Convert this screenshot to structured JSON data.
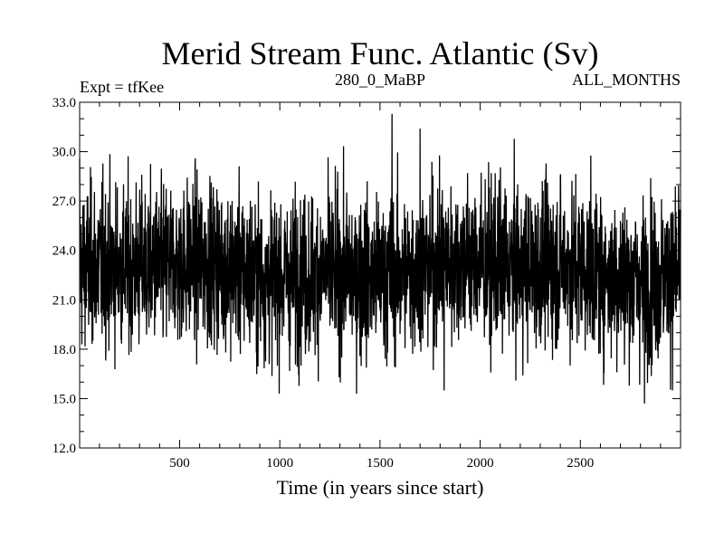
{
  "chart_data": {
    "type": "line",
    "title": "Merid Stream Func. Atlantic (Sv)",
    "subtitle_left": "Expt = tfKee",
    "subtitle_center": "280_0_MaBP",
    "subtitle_right": "ALL_MONTHS",
    "xlabel": "Time (in years since start)",
    "ylabel": "",
    "xlim": [
      1,
      3000
    ],
    "ylim": [
      12.0,
      33.0
    ],
    "x_ticks": [
      500,
      1000,
      1500,
      2000,
      2500
    ],
    "y_ticks": [
      "12.0",
      "15.0",
      "18.0",
      "21.0",
      "24.0",
      "27.0",
      "30.0",
      "33.0"
    ],
    "grid": false,
    "series": [
      {
        "color": "#000000",
        "mean": 22.8,
        "noise_range": [
          14.7,
          32.3
        ],
        "notable_points": [
          {
            "x": 1,
            "y": 29.6
          },
          {
            "x": 1560,
            "y": 32.3
          },
          {
            "x": 1700,
            "y": 31.4
          },
          {
            "x": 1820,
            "y": 15.5
          },
          {
            "x": 2820,
            "y": 14.7
          },
          {
            "x": 2960,
            "y": 15.5
          },
          {
            "x": 3000,
            "y": 26.5
          }
        ]
      }
    ]
  }
}
